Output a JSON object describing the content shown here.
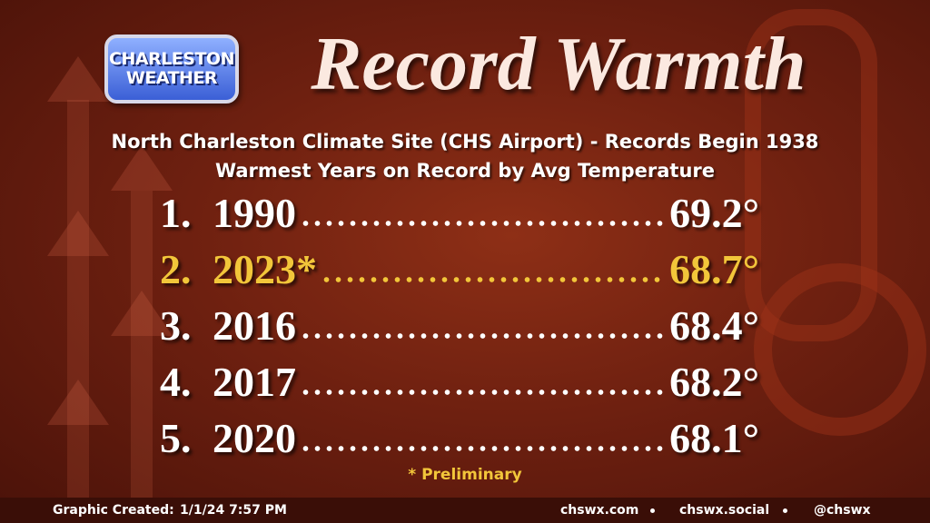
{
  "logo": {
    "lines": [
      "CHARLESTON",
      "WEATHER"
    ]
  },
  "title": "Record Warmth",
  "subtitle": [
    "North Charleston Climate Site (CHS Airport) - Records Begin 1938",
    "Warmest Years on Record by Avg Temperature"
  ],
  "records": [
    {
      "rank": "1.",
      "year": "1990",
      "value": "69.2°",
      "highlight": false
    },
    {
      "rank": "2.",
      "year": "2023*",
      "value": "68.7°",
      "highlight": true
    },
    {
      "rank": "3.",
      "year": "2016",
      "value": "68.4°",
      "highlight": false
    },
    {
      "rank": "4.",
      "year": "2017",
      "value": "68.2°",
      "highlight": false
    },
    {
      "rank": "5.",
      "year": "2020",
      "value": "68.1°",
      "highlight": false
    }
  ],
  "note": "* Preliminary",
  "footer": {
    "label": "Graphic Created:",
    "timestamp": "1/1/24 7:57 PM",
    "links": [
      "chswx.com",
      "chswx.social",
      "@chswx"
    ]
  }
}
